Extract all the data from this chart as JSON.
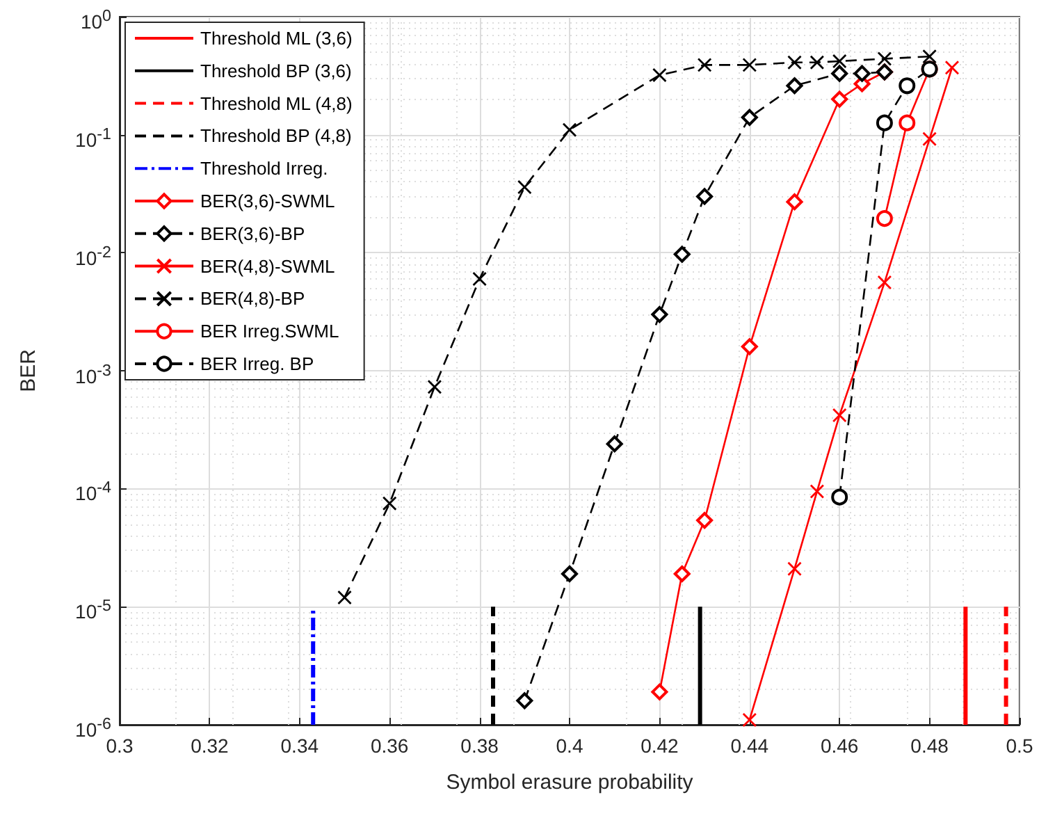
{
  "chart_data": {
    "type": "line",
    "xlabel": "Symbol erasure probability",
    "ylabel": "BER",
    "log": "y",
    "xlim": [
      0.3,
      0.5
    ],
    "xticks": [
      0.3,
      0.32,
      0.34,
      0.36,
      0.38,
      0.4,
      0.42,
      0.44,
      0.46,
      0.48,
      0.5
    ],
    "ylim": [
      1e-06,
      1
    ],
    "yticks": [
      {
        "value": 1e-06,
        "label": "10$^{-6}$"
      },
      {
        "value": 1e-05,
        "label": "10$^{-5}$"
      },
      {
        "value": 0.0001,
        "label": "10$^{-4}$"
      },
      {
        "value": 0.001,
        "label": "10$^{-3}$"
      },
      {
        "value": 0.01,
        "label": "10$^{-2}$"
      },
      {
        "value": 0.1,
        "label": "10$^{-1}$"
      },
      {
        "value": 1,
        "label": "10$^{0}$"
      }
    ],
    "grid": true,
    "legend": "top left",
    "series": [
      {
        "name": "Threshold ML (3,6)",
        "color": "#ff0000",
        "line_style": "solid",
        "marker": "none",
        "x": [
          0.488,
          0.488
        ],
        "values": [
          1e-06,
          1e-05
        ]
      },
      {
        "name": "Threshold BP (3,6)",
        "color": "#000000",
        "line_style": "solid",
        "marker": "none",
        "x": [
          0.429,
          0.429
        ],
        "values": [
          1e-06,
          1e-05
        ]
      },
      {
        "name": "Threshold ML (4,8)",
        "color": "#ff0000",
        "line_style": "dashed",
        "marker": "none",
        "x": [
          0.497,
          0.497
        ],
        "values": [
          1e-06,
          1e-05
        ]
      },
      {
        "name": "Threshold BP (4,8)",
        "color": "#000000",
        "line_style": "dashed",
        "marker": "none",
        "x": [
          0.383,
          0.383
        ],
        "values": [
          1e-06,
          1e-05
        ]
      },
      {
        "name": "Threshold Irreg.",
        "color": "#0000ff",
        "line_style": "dashdot",
        "marker": "none",
        "x": [
          0.343,
          0.343
        ],
        "values": [
          1e-06,
          1e-05
        ]
      },
      {
        "name": "BER(3,6)-SWML",
        "color": "#ff0000",
        "line_style": "solid",
        "marker": "diamond",
        "x": [
          0.42,
          0.425,
          0.43,
          0.44,
          0.45,
          0.46,
          0.465,
          0.47
        ],
        "values": [
          1.9e-06,
          1.9e-05,
          5.4e-05,
          0.0016,
          0.027,
          0.2,
          0.27,
          0.34
        ]
      },
      {
        "name": "BER(3,6)-BP",
        "color": "#000000",
        "line_style": "dashed",
        "marker": "diamond",
        "x": [
          0.39,
          0.4,
          0.41,
          0.42,
          0.425,
          0.43,
          0.44,
          0.45,
          0.46,
          0.465,
          0.47
        ],
        "values": [
          1.6e-06,
          1.9e-05,
          0.00024,
          0.003,
          0.0097,
          0.03,
          0.14,
          0.26,
          0.33,
          0.33,
          0.34
        ]
      },
      {
        "name": "BER(4,8)-SWML",
        "color": "#ff0000",
        "line_style": "solid",
        "marker": "cross",
        "x": [
          0.44,
          0.45,
          0.455,
          0.46,
          0.47,
          0.48,
          0.485
        ],
        "values": [
          1.1e-06,
          2.1e-05,
          9.5e-05,
          0.00042,
          0.0056,
          0.092,
          0.37
        ]
      },
      {
        "name": "BER(4,8)-BP",
        "color": "#000000",
        "line_style": "dashed",
        "marker": "cross",
        "x": [
          0.35,
          0.36,
          0.37,
          0.38,
          0.39,
          0.4,
          0.42,
          0.43,
          0.44,
          0.45,
          0.455,
          0.46,
          0.47,
          0.48
        ],
        "values": [
          1.2e-05,
          7.5e-05,
          0.00073,
          0.006,
          0.036,
          0.11,
          0.32,
          0.39,
          0.39,
          0.41,
          0.41,
          0.42,
          0.44,
          0.46
        ]
      },
      {
        "name": "BER Irreg.SWML",
        "color": "#ff0000",
        "line_style": "solid",
        "marker": "circle",
        "x": [
          0.47,
          0.475,
          0.48
        ],
        "values": [
          0.0195,
          0.126,
          0.36
        ]
      },
      {
        "name": "BER Irreg. BP",
        "color": "#000000",
        "line_style": "dashed",
        "marker": "circle",
        "x": [
          0.46,
          0.47,
          0.475,
          0.48
        ],
        "values": [
          8.5e-05,
          0.126,
          0.26,
          0.36
        ]
      }
    ]
  }
}
